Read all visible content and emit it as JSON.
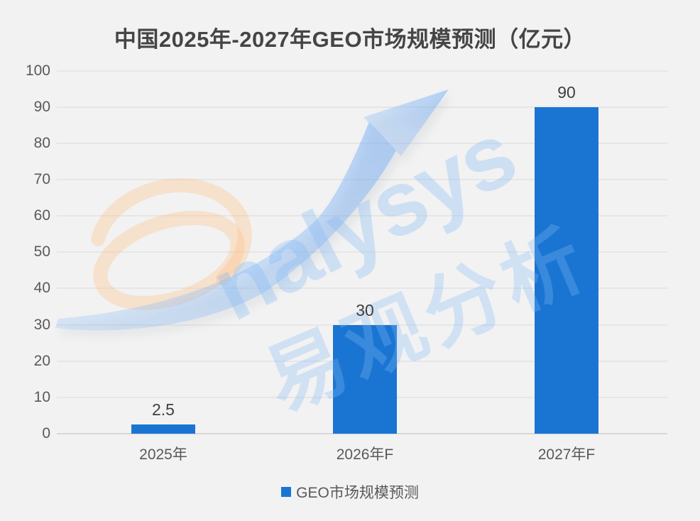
{
  "page": {
    "background": "#f2f2f2"
  },
  "title": {
    "text": "中国2025年-2027年GEO市场规模预测（亿元）",
    "color": "#454545"
  },
  "legend": {
    "label": "GEO市场规模预测",
    "marker_color": "#1a75d2"
  },
  "watermark": {
    "brand_text": "nalysys",
    "brand_cjk": "易观分析",
    "swirl_icon": "analysys-a-swirl",
    "arrow_icon": "growth-arrow"
  },
  "chart_data": {
    "type": "bar",
    "title": "中国2025年-2027年GEO市场规模预测（亿元）",
    "unit": "亿元",
    "categories": [
      "2025年",
      "2026年F",
      "2027年F"
    ],
    "series": [
      {
        "name": "GEO市场规模预测",
        "values": [
          2.5,
          30,
          90
        ]
      }
    ],
    "value_labels": [
      "2.5",
      "30",
      "90"
    ],
    "ylim": [
      0,
      100
    ],
    "ytick_step": 10,
    "ytick_labels": [
      "0",
      "10",
      "20",
      "30",
      "40",
      "50",
      "60",
      "70",
      "80",
      "90",
      "100"
    ],
    "grid": "horizontal",
    "legend_position": "bottom",
    "bar_color": "#1a75d2",
    "gridline_color": "#e6e6e6",
    "axisline_color": "#d8d8d8"
  }
}
